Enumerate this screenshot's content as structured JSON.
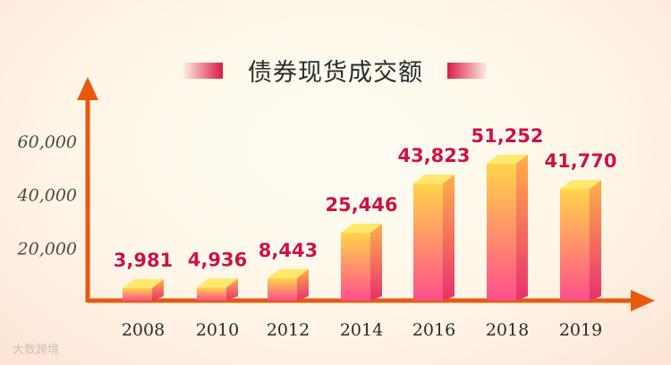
{
  "chart_data": {
    "type": "bar",
    "title": "债券现货成交额",
    "categories": [
      "2008",
      "2010",
      "2012",
      "2014",
      "2016",
      "2018",
      "2019"
    ],
    "values": [
      3981,
      4936,
      8443,
      25446,
      43823,
      51252,
      41770
    ],
    "value_labels": [
      "3,981",
      "4,936",
      "8,443",
      "25,446",
      "43,823",
      "51,252",
      "41,770"
    ],
    "ytick_labels": [
      "20,000",
      "40,000",
      "60,000"
    ],
    "yticks": [
      20000,
      40000,
      60000
    ],
    "ylim": [
      0,
      75000
    ],
    "grid": false,
    "xlabel": "",
    "ylabel": ""
  },
  "colors": {
    "axis": "#e8590f",
    "bar_top": "#ffe86b",
    "bar_front_top": "#ffd44a",
    "bar_front_bottom": "#ff4f8b",
    "bar_side_top": "#ffb04a",
    "bar_side_bottom": "#e8306f",
    "value_label": "#d0123a",
    "tick_label": "#4a4a4a"
  },
  "watermark": "大数跨境"
}
